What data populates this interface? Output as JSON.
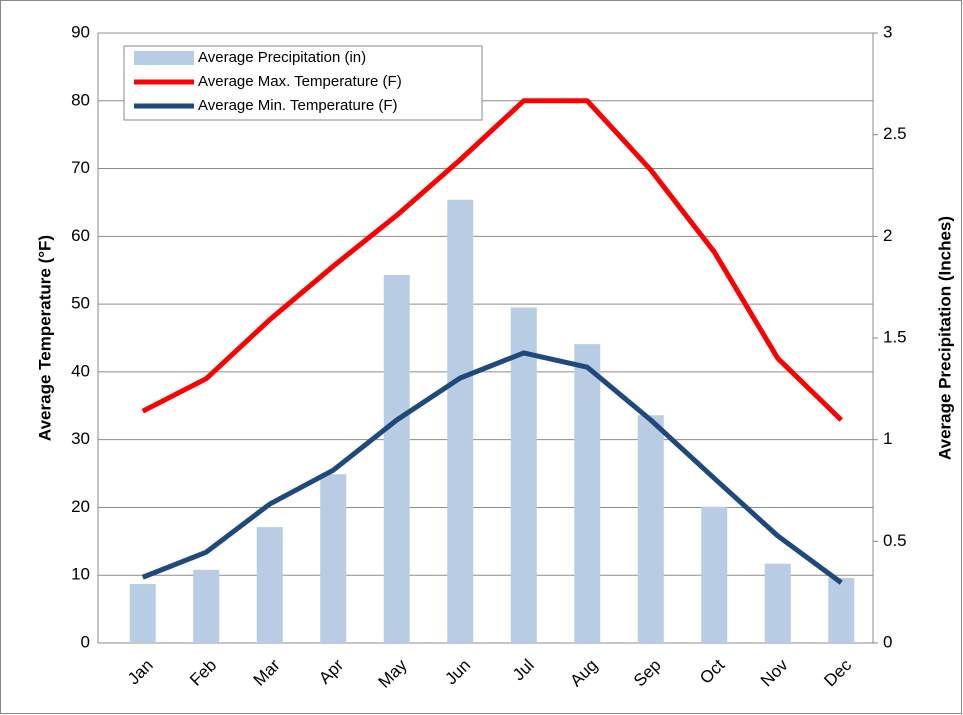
{
  "chart_data": {
    "type": "bar-line",
    "y_label": "Average Temperature (°F)",
    "y2_label": "Average Precipitation (Inches)",
    "categories": [
      "Jan",
      "Feb",
      "Mar",
      "Apr",
      "May",
      "Jun",
      "Jul",
      "Aug",
      "Sep",
      "Oct",
      "Nov",
      "Dec"
    ],
    "series": [
      {
        "name": "Average Precipitation (in)",
        "type": "bar",
        "axis": "y2",
        "color": "#b8cce4",
        "values": [
          0.29,
          0.36,
          0.57,
          0.83,
          1.81,
          2.18,
          1.65,
          1.47,
          1.12,
          0.67,
          0.39,
          0.32
        ]
      },
      {
        "name": "Average Max. Temperature (F)",
        "type": "line",
        "color": "#ff0000",
        "values": [
          34.2,
          39,
          47.7,
          55.6,
          63.1,
          71.3,
          80,
          80,
          69.8,
          57.7,
          42,
          32.9
        ]
      },
      {
        "name": "Average Min. Temperature (F)",
        "type": "line",
        "color": "#1f497d",
        "values": [
          9.7,
          13.4,
          20.5,
          25.5,
          32.9,
          39.1,
          42.8,
          40.7,
          32.9,
          24.3,
          15.8,
          8.9
        ]
      }
    ],
    "ylim": [
      0,
      90
    ],
    "yticks": [
      0,
      10,
      20,
      30,
      40,
      50,
      60,
      70,
      80,
      90
    ],
    "y2lim": [
      0,
      3
    ],
    "y2ticks": [
      0,
      0.5,
      1,
      1.5,
      2,
      2.5,
      3
    ],
    "grid": true,
    "legend": "top-left"
  }
}
